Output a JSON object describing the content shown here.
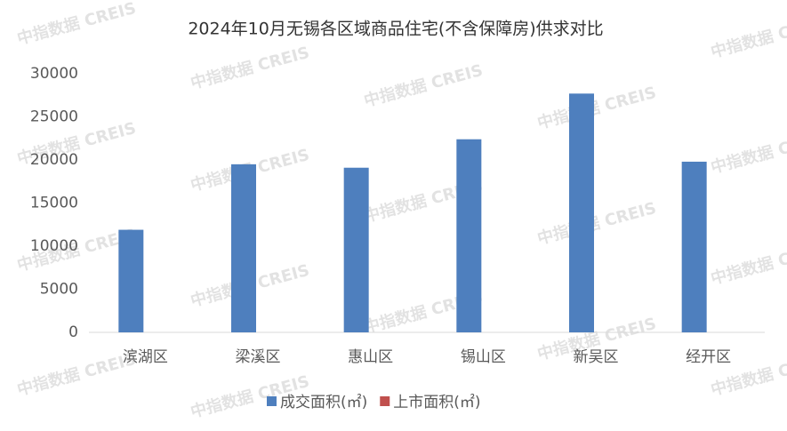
{
  "chart_data": {
    "type": "bar",
    "title": "2024年10月无锡各区域商品住宅(不含保障房)供求对比",
    "watermark": "中指数据 CREIS",
    "categories": [
      "滨湖区",
      "梁溪区",
      "惠山区",
      "锡山区",
      "新吴区",
      "经开区"
    ],
    "series": [
      {
        "name": "成交面积(㎡)",
        "color": "#4e7fbe",
        "values": [
          11900,
          19500,
          19100,
          22400,
          27700,
          19800
        ]
      },
      {
        "name": "上市面积(㎡)",
        "color": "#c0504d",
        "values": [
          0,
          0,
          0,
          0,
          0,
          0
        ]
      }
    ],
    "ylim": [
      0,
      30000
    ],
    "yticks": [
      0,
      5000,
      10000,
      15000,
      20000,
      25000,
      30000
    ],
    "grid": false,
    "legend": "bottom"
  }
}
